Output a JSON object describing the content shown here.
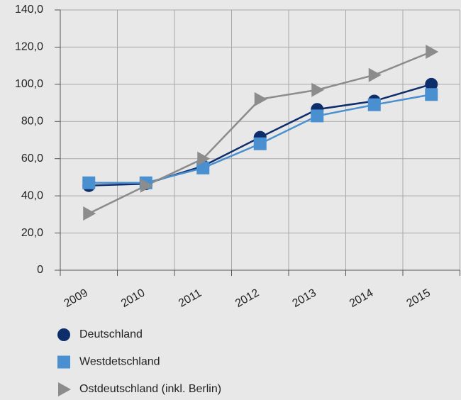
{
  "chart_data": {
    "type": "line",
    "categories": [
      "2009",
      "2010",
      "2011",
      "2012",
      "2013",
      "2014",
      "2015"
    ],
    "series": [
      {
        "name": "Deutschland",
        "color": "#0d2d6b",
        "marker": "circle",
        "values": [
          45.5,
          46.5,
          56,
          71.5,
          86.5,
          91,
          100
        ]
      },
      {
        "name": "Westdetschland",
        "color": "#4a90d0",
        "marker": "square",
        "values": [
          47,
          47,
          55,
          68,
          83,
          89,
          94.5
        ]
      },
      {
        "name": "Ostdeutschland (inkl. Berlin)",
        "color": "#8c8c8c",
        "marker": "triangle",
        "values": [
          30.5,
          45.5,
          60,
          92,
          97,
          105,
          117.5
        ]
      }
    ],
    "ylim": [
      0,
      140
    ],
    "yticks": [
      0,
      {
        "value": 20,
        "label": "20,0"
      },
      {
        "value": 40,
        "label": "40,0"
      },
      {
        "value": 60,
        "label": "60,0"
      },
      {
        "value": 80,
        "label": "80,0"
      },
      {
        "value": 100,
        "label": "100,0"
      },
      {
        "value": 120,
        "label": "120,0"
      },
      {
        "value": 140,
        "label": "140,0"
      }
    ],
    "grid": true,
    "legend": "bottom"
  }
}
